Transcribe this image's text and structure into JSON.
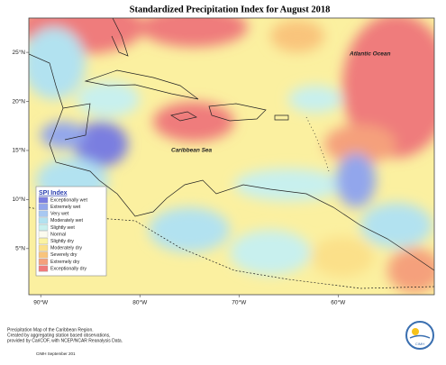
{
  "map": {
    "title": "Standardized Precipitation Index for August 2018",
    "labels": [
      "Atlantic Ocean",
      "Caribbean Sea"
    ],
    "xlim": [
      -91.2,
      -50.3
    ],
    "ylim": [
      0.3,
      28.5
    ],
    "xticks": [
      {
        "value": -90,
        "label": "90°W"
      },
      {
        "value": -80,
        "label": "80°W"
      },
      {
        "value": -70,
        "label": "70°W"
      },
      {
        "value": -60,
        "label": "60°W"
      }
    ],
    "yticks": [
      {
        "value": 25,
        "label": "25°N"
      },
      {
        "value": 20,
        "label": "20°N"
      },
      {
        "value": 15,
        "label": "15°N"
      },
      {
        "value": 10,
        "label": "10°N"
      },
      {
        "value": 5,
        "label": "5°N"
      }
    ],
    "legend": {
      "title": "SPI Index",
      "items": [
        {
          "label": "Exceptionally wet",
          "color": "#7a7ee0"
        },
        {
          "label": "Extremely wet",
          "color": "#92a6ec"
        },
        {
          "label": "Very wet",
          "color": "#a8c8f2"
        },
        {
          "label": "Moderately wet",
          "color": "#b2e2f0"
        },
        {
          "label": "Slightly wet",
          "color": "#c8f0ee"
        },
        {
          "label": "Normal",
          "color": "#fbfbef"
        },
        {
          "label": "Slightly dry",
          "color": "#fbf3a2"
        },
        {
          "label": "Moderately dry",
          "color": "#fbe089"
        },
        {
          "label": "Severely dry",
          "color": "#f9c47c"
        },
        {
          "label": "Extremely dry",
          "color": "#f5a07c"
        },
        {
          "label": "Exceptionally dry",
          "color": "#ef7b7b"
        }
      ]
    },
    "footer": [
      "Precipitation Map of the Caribbean Region.",
      "Created by aggregating station based observations,",
      "provided by CariCOF, with NCEP/NCAR Reanalysis Data."
    ],
    "credit": "CIMH September 201",
    "logo": "CIMH"
  }
}
